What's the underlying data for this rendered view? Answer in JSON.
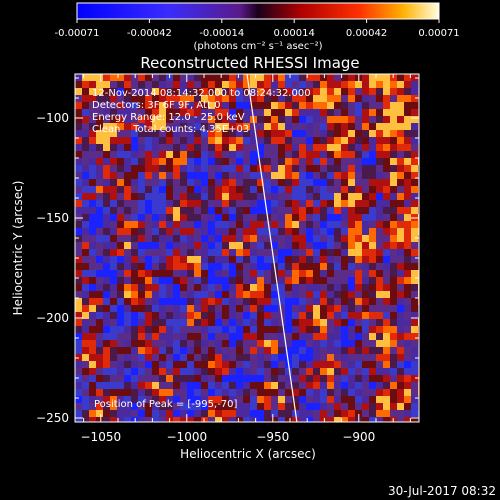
{
  "chart_data": {
    "type": "heatmap",
    "title": "Reconstructed RHESSI Image",
    "xlabel": "Heliocentric X (arcsec)",
    "ylabel": "Heliocentric Y (arcsec)",
    "xlim": [
      -1065,
      -865
    ],
    "ylim": [
      -252,
      -78
    ],
    "x_ticks": [
      -1050,
      -1000,
      -950,
      -900
    ],
    "y_ticks": [
      -100,
      -150,
      -200,
      -250
    ],
    "colorbar": {
      "range": [
        -0.00071,
        0.00071
      ],
      "ticks": [
        "-0.00071",
        "-0.00042",
        "-0.00014",
        "0.00014",
        "0.00042",
        "0.00071"
      ],
      "units": "(photons cm⁻² s⁻¹ asec⁻²)"
    },
    "annotations": [
      "12-Nov-2014 08:14:32.000 to 08:24:32.000",
      "Detectors: 3F 6F 9F, Att 0",
      "Energy Range: 12.0 - 25.0 keV",
      "Clean    Total counts: 4.35E+03"
    ],
    "peak_label": "Position of Peak = [-995,-70]",
    "peak": [
      -995,
      -70
    ],
    "limb_line": [
      [
        -965,
        -78
      ],
      [
        -936,
        -252
      ]
    ],
    "footer_timestamp": "30-Jul-2017 08:32",
    "grid": false
  }
}
